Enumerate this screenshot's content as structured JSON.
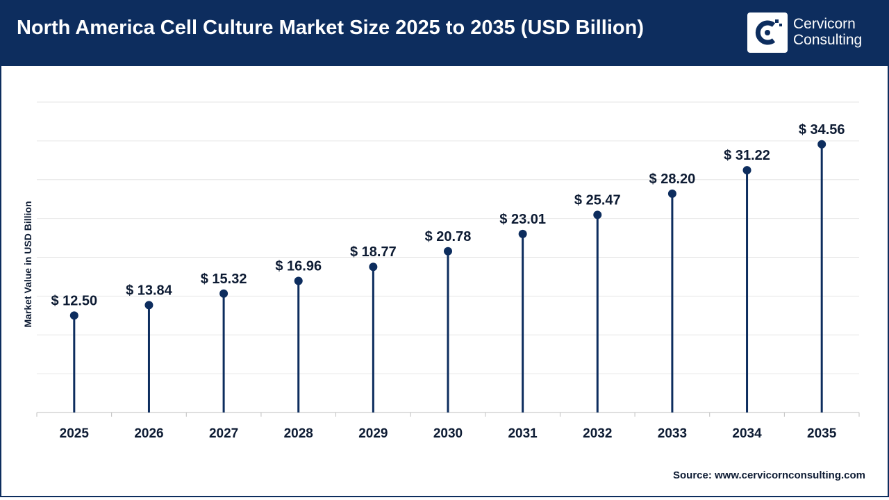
{
  "header": {
    "title": "North America Cell Culture Market Size 2025 to 2035 (USD Billion)",
    "logo_line1": "Cervicorn",
    "logo_line2": "Consulting"
  },
  "source": "Source: www.cervicornconsulting.com",
  "colors": {
    "header_bg": "#0d2d5e",
    "marker": "#0d2d5e",
    "grid": "#e6e6e6",
    "text": "#0d1b33"
  },
  "chart_data": {
    "type": "scatter",
    "style": "lollipop",
    "ylabel": "Market Value in USD Billion",
    "categories": [
      "2025",
      "2026",
      "2027",
      "2028",
      "2029",
      "2030",
      "2031",
      "2032",
      "2033",
      "2034",
      "2035"
    ],
    "values": [
      12.5,
      13.84,
      15.32,
      16.96,
      18.77,
      20.78,
      23.01,
      25.47,
      28.2,
      31.22,
      34.56
    ],
    "value_labels": [
      "$ 12.50",
      "$ 13.84",
      "$ 15.32",
      "$ 16.96",
      "$ 18.77",
      "$ 20.78",
      "$ 23.01",
      "$ 25.47",
      "$ 28.20",
      "$ 31.22",
      "$ 34.56"
    ],
    "ylim": [
      0,
      40
    ],
    "grid": true,
    "legend": "none"
  }
}
